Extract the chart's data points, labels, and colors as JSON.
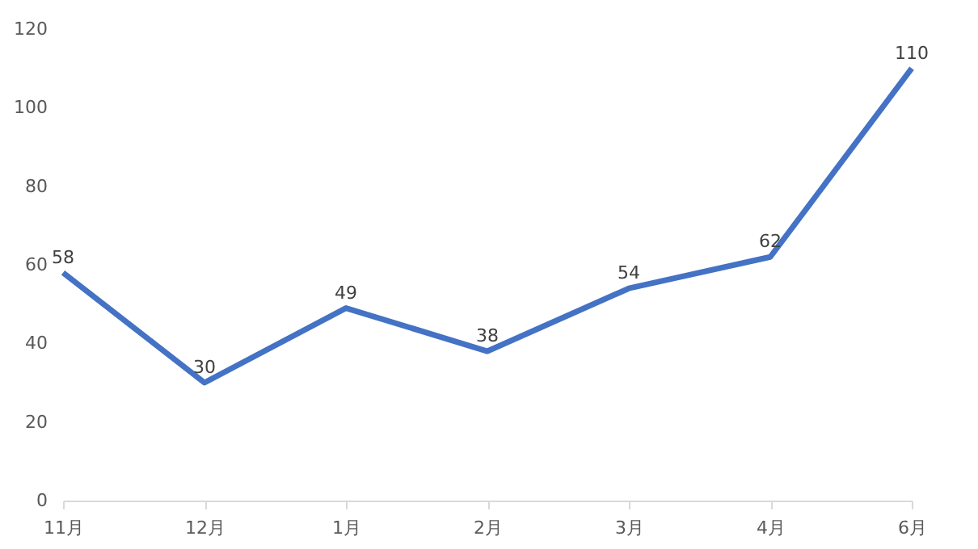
{
  "chart_data": {
    "type": "line",
    "categories": [
      "11月",
      "12月",
      "1月",
      "2月",
      "3月",
      "4月",
      "6月"
    ],
    "series": [
      {
        "color": "#4472c4",
        "values": [
          58,
          30,
          49,
          38,
          54,
          62,
          110
        ]
      }
    ],
    "ylim": [
      0,
      120
    ],
    "yticks": [
      0,
      20,
      40,
      60,
      80,
      100,
      120
    ],
    "grid": false,
    "data_labels": true,
    "marker": "none",
    "line_style": "solid"
  }
}
